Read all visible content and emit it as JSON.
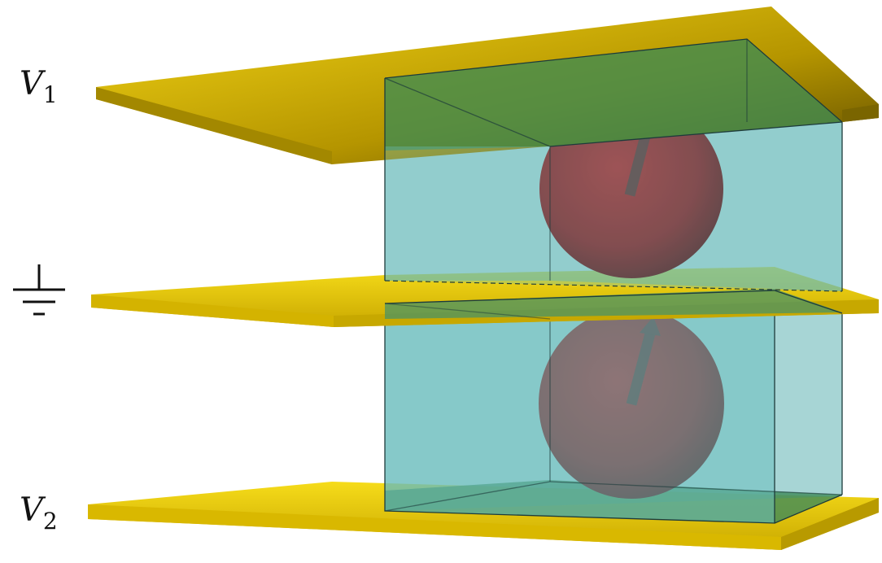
{
  "labels": {
    "v1": {
      "symbol": "V",
      "subscript": "1"
    },
    "v2": {
      "symbol": "V",
      "subscript": "2"
    }
  },
  "icons": {
    "ground": "ground-symbol-icon",
    "moment_arrow": "magnetization-arrow-icon"
  },
  "colors": {
    "electrode": "#e8c200",
    "electrode_shadow": "#7a6500",
    "cell_fill": "#5fb3b3",
    "sphere": "#a01518",
    "sphere_dark": "#4a0608",
    "arrow": "#5a2a2a"
  }
}
